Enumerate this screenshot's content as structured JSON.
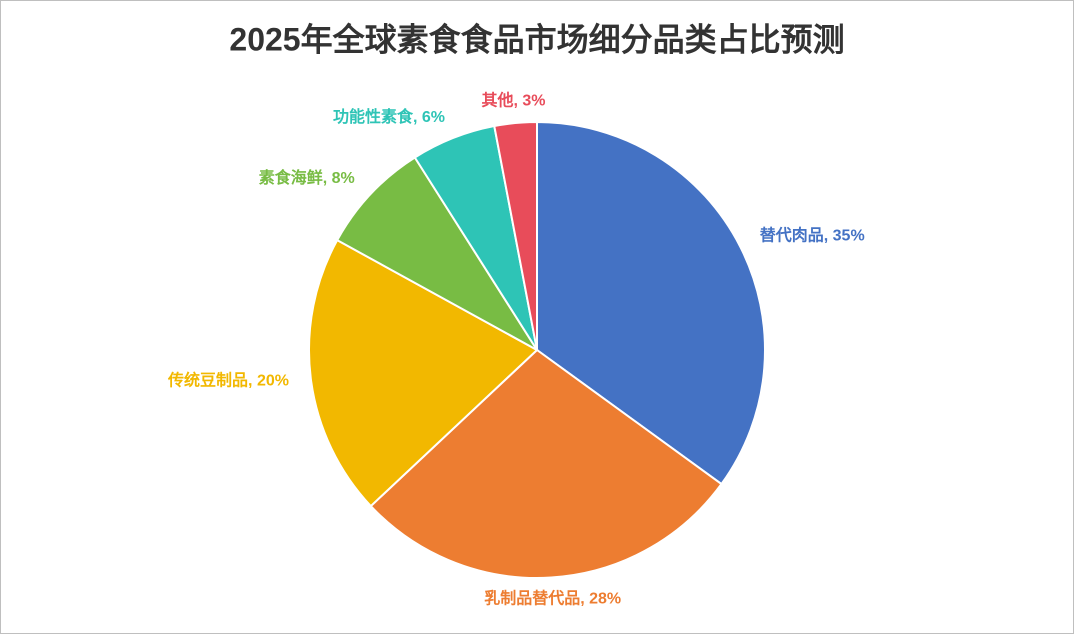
{
  "chart_data": {
    "type": "pie",
    "title": "2025年全球素食食品市场细分品类占比预测",
    "values": [
      35,
      28,
      20,
      8,
      6,
      3
    ],
    "value_labels": [
      "替代肉品, 35%",
      "乳制品替代品, 28%",
      "传统豆制品, 20%",
      "素食海鲜, 8%",
      "功能性素食, 6%",
      "其他, 3%"
    ],
    "colors": [
      "#4472c4",
      "#ed7d31",
      "#f2b800",
      "#78bc44",
      "#2ec4b6",
      "#e84c5a"
    ]
  }
}
